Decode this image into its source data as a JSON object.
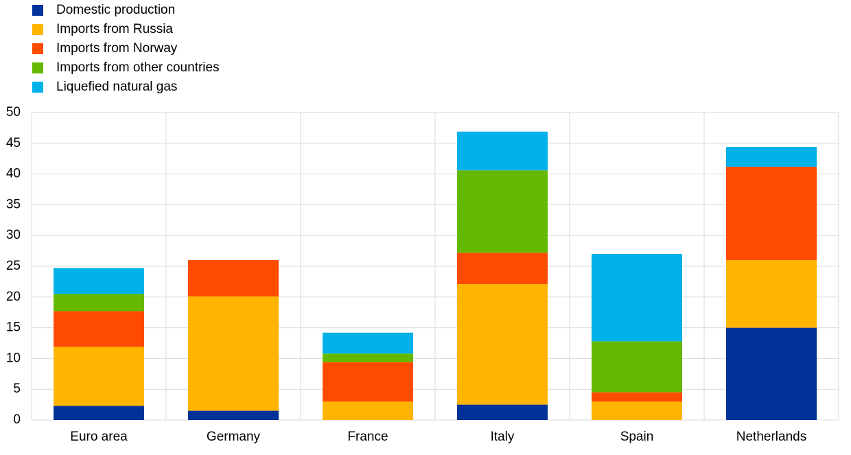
{
  "chart_data": {
    "type": "stacked_bar",
    "categories": [
      "Euro area",
      "Germany",
      "France",
      "Italy",
      "Spain",
      "Netherlands"
    ],
    "series": [
      {
        "name": "Domestic production",
        "color": "#003299",
        "values": [
          2.3,
          1.5,
          0,
          2.5,
          0,
          15.0
        ]
      },
      {
        "name": "Imports from Russia",
        "color": "#ffb400",
        "values": [
          9.6,
          18.6,
          3.0,
          19.6,
          3.0,
          11.0
        ]
      },
      {
        "name": "Imports from Norway",
        "color": "#ff4b00",
        "values": [
          5.8,
          5.9,
          6.4,
          5.1,
          1.5,
          15.2
        ]
      },
      {
        "name": "Imports from other countries",
        "color": "#65b800",
        "values": [
          2.8,
          0,
          1.4,
          13.4,
          8.3,
          0
        ]
      },
      {
        "name": "Liquefied natural gas",
        "color": "#00b1ea",
        "values": [
          4.2,
          0,
          3.4,
          6.3,
          14.2,
          3.2
        ]
      }
    ],
    "ylim": [
      0,
      50
    ],
    "yticks": [
      0,
      5,
      10,
      15,
      20,
      25,
      30,
      35,
      40,
      45,
      50
    ],
    "grid": true
  }
}
